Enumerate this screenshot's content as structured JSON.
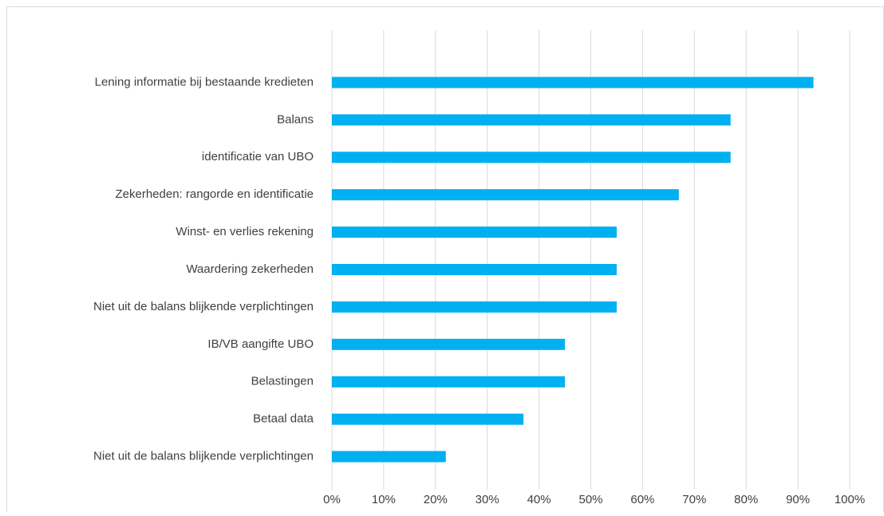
{
  "chart_data": {
    "type": "bar",
    "orientation": "horizontal",
    "categories": [
      "Lening informatie bij bestaande kredieten",
      "Balans",
      "identificatie van UBO",
      "Zekerheden: rangorde en identificatie",
      "Winst- en verlies rekening",
      "Waardering zekerheden",
      "Niet uit de balans blijkende verplichtingen",
      "IB/VB aangifte UBO",
      "Belastingen",
      "Betaal data",
      "Niet uit de balans blijkende verplichtingen"
    ],
    "values": [
      93,
      77,
      77,
      67,
      55,
      55,
      55,
      45,
      45,
      37,
      22
    ],
    "color": "#00b0f0",
    "xlim": [
      0,
      100
    ],
    "xticks": [
      {
        "value": 0,
        "label": "0%"
      },
      {
        "value": 10,
        "label": "10%"
      },
      {
        "value": 20,
        "label": "20%"
      },
      {
        "value": 30,
        "label": "30%"
      },
      {
        "value": 40,
        "label": "40%"
      },
      {
        "value": 50,
        "label": "50%"
      },
      {
        "value": 60,
        "label": "60%"
      },
      {
        "value": 70,
        "label": "70%"
      },
      {
        "value": 80,
        "label": "80%"
      },
      {
        "value": 90,
        "label": "90%"
      },
      {
        "value": 100,
        "label": "100%"
      }
    ],
    "grid": true
  }
}
